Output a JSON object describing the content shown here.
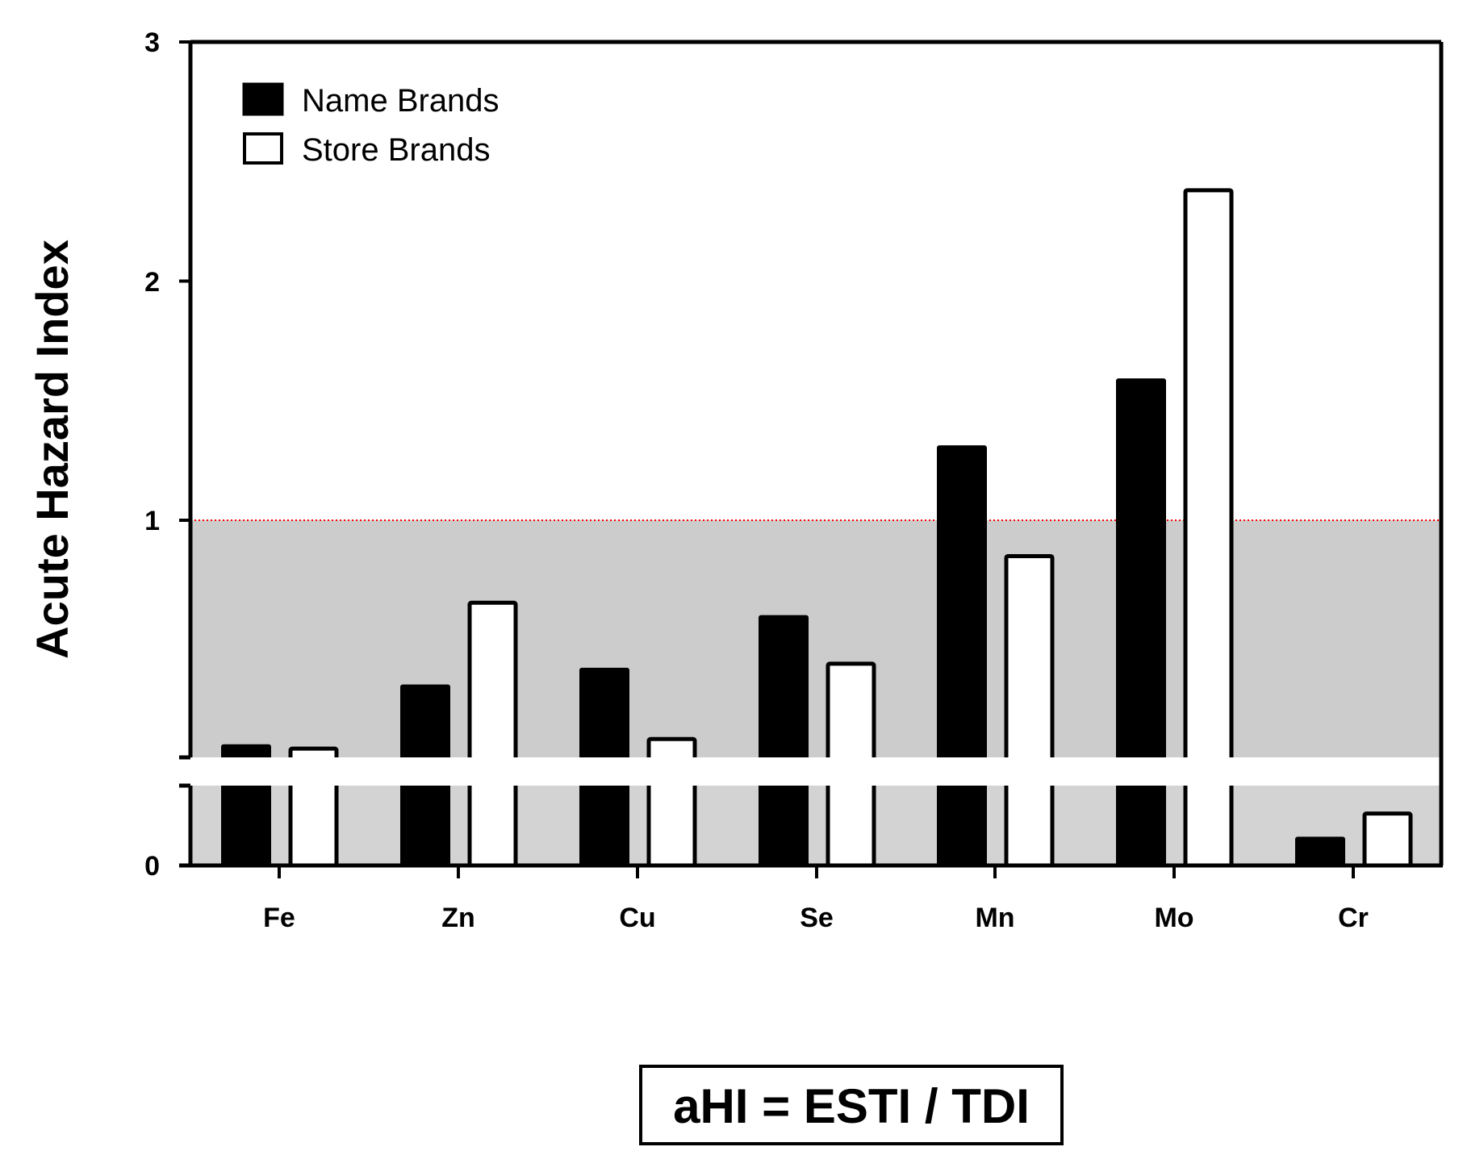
{
  "chart_data": {
    "type": "bar",
    "title": "",
    "xlabel": "",
    "ylabel": "Acute Hazard Index",
    "categories": [
      "Fe",
      "Zn",
      "Cu",
      "Se",
      "Mn",
      "Mo",
      "Cr"
    ],
    "series": [
      {
        "name": "Name Brands",
        "values": [
          0.06,
          0.31,
          0.38,
          0.6,
          1.31,
          1.59,
          0.007
        ],
        "color": "#000000"
      },
      {
        "name": "Store Brands",
        "values": [
          0.045,
          0.655,
          0.085,
          0.4,
          0.85,
          2.38,
          0.013
        ],
        "color": "#ffffff"
      }
    ],
    "ylim": [
      0,
      3
    ],
    "y_axis_break": true,
    "lower_segment_ylim": [
      0,
      0.02
    ],
    "upper_segment_ylim": [
      0,
      3
    ],
    "yticks": [
      "0",
      "1",
      "2",
      "3"
    ],
    "reference_line": {
      "value": 1,
      "color": "#ff0000",
      "style": "dotted"
    },
    "shaded_region": {
      "from": 0,
      "to": 1,
      "color": "#cccccc"
    },
    "grid": false,
    "legend_position": "top-left",
    "annotation": "aHI = ESTI / TDI"
  }
}
